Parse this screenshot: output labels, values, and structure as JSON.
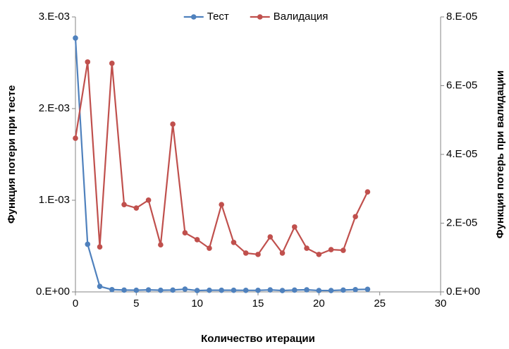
{
  "chart_data": {
    "type": "line",
    "xlabel": "Количество итерации",
    "ylabel": "Функция потери при тесте",
    "y2label": "Функция потерь при валидации",
    "x": [
      0,
      1,
      2,
      3,
      4,
      5,
      6,
      7,
      8,
      9,
      10,
      11,
      12,
      13,
      14,
      15,
      16,
      17,
      18,
      19,
      20,
      21,
      22,
      23,
      24
    ],
    "series": [
      {
        "name": "Тест",
        "color": "#4f81bd",
        "axis": "y",
        "values": [
          0.00277,
          0.00052,
          6e-05,
          2.5e-05,
          2e-05,
          1.8e-05,
          2.2e-05,
          1.8e-05,
          2e-05,
          3e-05,
          1.5e-05,
          1.8e-05,
          1.8e-05,
          1.8e-05,
          1.7e-05,
          1.7e-05,
          2.2e-05,
          1.5e-05,
          2e-05,
          2.3e-05,
          1.5e-05,
          1.5e-05,
          2e-05,
          2.5e-05,
          2.8e-05
        ]
      },
      {
        "name": "Валидация",
        "color": "#c0504d",
        "axis": "y2",
        "values": [
          4.47e-05,
          6.69e-05,
          1.31e-05,
          6.65e-05,
          2.54e-05,
          2.44e-05,
          2.67e-05,
          1.37e-05,
          4.88e-05,
          1.72e-05,
          1.52e-05,
          1.27e-05,
          2.54e-05,
          1.44e-05,
          1.13e-05,
          1.09e-05,
          1.6e-05,
          1.13e-05,
          1.89e-05,
          1.27e-05,
          1.09e-05,
          1.23e-05,
          1.21e-05,
          2.19e-05,
          2.91e-05
        ]
      }
    ],
    "xlim": [
      0,
      30
    ],
    "xticks": [
      0,
      5,
      10,
      15,
      20,
      25,
      30
    ],
    "ylim": [
      0,
      0.003
    ],
    "yticks": [
      {
        "value": 0,
        "label": "0.E+00"
      },
      {
        "value": 0.001,
        "label": "1.E-03"
      },
      {
        "value": 0.002,
        "label": "2.E-03"
      },
      {
        "value": 0.003,
        "label": "3.E-03"
      }
    ],
    "y2lim": [
      0,
      8e-05
    ],
    "y2ticks": [
      {
        "value": 0,
        "label": "0.E+00"
      },
      {
        "value": 2e-05,
        "label": "2.E-05"
      },
      {
        "value": 4e-05,
        "label": "4.E-05"
      },
      {
        "value": 6e-05,
        "label": "6.E-05"
      },
      {
        "value": 8e-05,
        "label": "8.E-05"
      }
    ],
    "grid": false,
    "legend": "top"
  }
}
